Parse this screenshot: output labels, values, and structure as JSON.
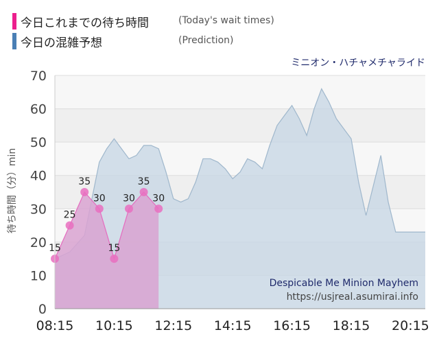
{
  "legend": {
    "today_label": "今日これまでの待ち時間",
    "today_sub": "(Today's wait times)",
    "today_color": "#ec1f8d",
    "prediction_label": "今日の混雑予想",
    "prediction_sub": "(Prediction)",
    "prediction_color": "#4a7fb5"
  },
  "watermark": {
    "line1": "Despicable Me Minion Mayhem",
    "line2": "https://usjreal.asumirai.info"
  },
  "chart_data": {
    "type": "area",
    "title": "ミニオン・ハチャメチャライド",
    "ylabel": "待ち時間（分）min",
    "xlabel": "",
    "ylim": [
      0,
      70
    ],
    "xlim": [
      "08:15",
      "20:45"
    ],
    "x_ticks": [
      "08:15",
      "10:15",
      "12:15",
      "14:15",
      "16:15",
      "18:15",
      "20:15"
    ],
    "y_ticks": [
      0,
      10,
      20,
      30,
      40,
      50,
      60,
      70
    ],
    "grid": true,
    "background_bands": true,
    "series": [
      {
        "key": "prediction",
        "color": "#c5d6e4",
        "stroke": "#9fb7cc",
        "x": [
          "08:15",
          "08:45",
          "09:15",
          "09:30",
          "09:45",
          "10:00",
          "10:15",
          "10:30",
          "10:45",
          "11:00",
          "11:15",
          "11:30",
          "11:45",
          "12:00",
          "12:15",
          "12:30",
          "12:45",
          "13:00",
          "13:15",
          "13:30",
          "13:45",
          "14:00",
          "14:15",
          "14:30",
          "14:45",
          "15:00",
          "15:15",
          "15:30",
          "15:45",
          "16:00",
          "16:15",
          "16:30",
          "16:45",
          "17:00",
          "17:15",
          "17:30",
          "17:45",
          "18:00",
          "18:15",
          "18:30",
          "18:45",
          "19:00",
          "19:15",
          "19:30",
          "19:45",
          "20:00",
          "20:15",
          "20:30",
          "20:45"
        ],
        "values": [
          15,
          17,
          22,
          33,
          44,
          48,
          51,
          48,
          45,
          46,
          49,
          49,
          48,
          41,
          33,
          32,
          33,
          38,
          45,
          45,
          44,
          42,
          39,
          41,
          45,
          44,
          42,
          49,
          55,
          58,
          61,
          57,
          52,
          60,
          66,
          62,
          57,
          54,
          51,
          38,
          28,
          37,
          46,
          32,
          23,
          23,
          23,
          23,
          23
        ]
      },
      {
        "key": "today",
        "color": "#d9a3d1",
        "stroke": "#e56cbf",
        "point_color": "#e96fc0",
        "x": [
          "08:15",
          "08:45",
          "09:15",
          "09:45",
          "10:15",
          "10:45",
          "11:15",
          "11:45"
        ],
        "values": [
          15,
          25,
          35,
          30,
          15,
          30,
          35,
          30
        ],
        "labels": [
          "15",
          "25",
          "35",
          "30",
          "15",
          "30",
          "35",
          "30"
        ]
      }
    ]
  }
}
